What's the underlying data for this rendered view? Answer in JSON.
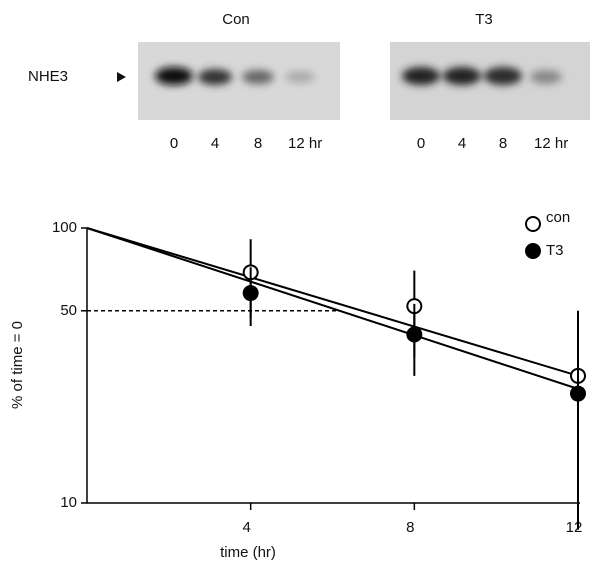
{
  "blots": {
    "label": "NHE3",
    "panels": [
      {
        "title": "Con",
        "lanes": [
          "0",
          "4",
          "8",
          "12 hr"
        ]
      },
      {
        "title": "T3",
        "lanes": [
          "0",
          "4",
          "8",
          "12 hr"
        ]
      }
    ]
  },
  "chart_data": {
    "type": "scatter",
    "xlabel": "time (hr)",
    "ylabel": "% of time = 0",
    "xlim": [
      0,
      12
    ],
    "ylim": [
      10,
      100
    ],
    "log_y": true,
    "xticks": [
      4,
      8,
      12
    ],
    "yticks": [
      10,
      50,
      100
    ],
    "reference_line": {
      "y": 50,
      "x": [
        0,
        6.2
      ]
    },
    "series": [
      {
        "name": "con",
        "color": "#ffffff",
        "x": [
          4,
          8,
          12
        ],
        "values": [
          69,
          52,
          29
        ],
        "errors": [
          22,
          18,
          21
        ],
        "fit_x": [
          0,
          12
        ],
        "fit": [
          100,
          29
        ]
      },
      {
        "name": "T3",
        "color": "#000000",
        "x": [
          4,
          8,
          12
        ],
        "values": [
          58,
          41,
          25
        ],
        "errors": [
          14,
          12,
          8
        ],
        "fit_x": [
          0,
          12
        ],
        "fit": [
          100,
          26
        ]
      }
    ]
  }
}
